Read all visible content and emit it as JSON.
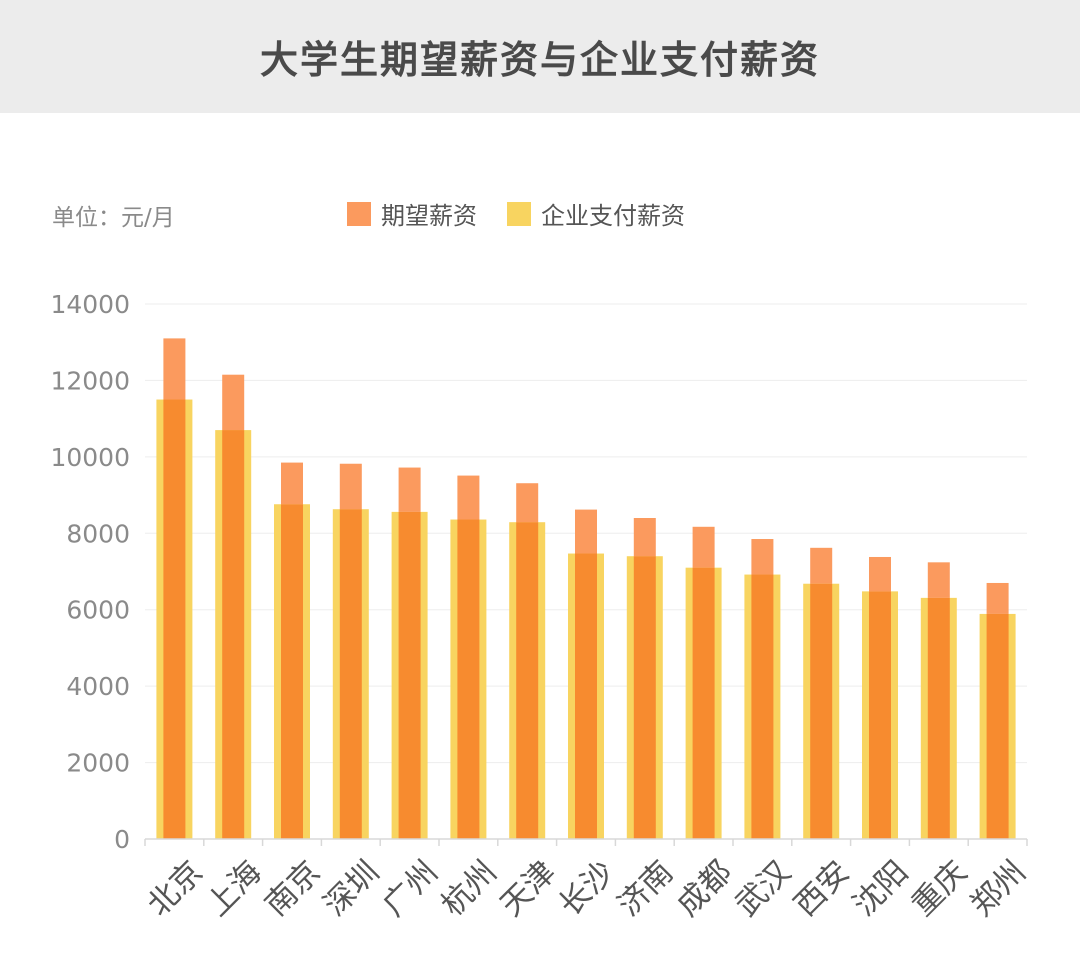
{
  "title": "大学生期望薪资与企业支付薪资",
  "unit_label": "单位：元/月",
  "colors": {
    "expected": "#fb9a5e",
    "paid": "#f8d460",
    "overlap": "#f78b2f",
    "title_bg": "#ececec",
    "grid": "#ededed",
    "axis_text": "#8a8a8a",
    "category_text": "#555555"
  },
  "chart_data": {
    "type": "bar",
    "title": "大学生期望薪资与企业支付薪资",
    "ylabel": "单位：元/月",
    "xlabel": "",
    "ylim": [
      0,
      14000
    ],
    "yticks": [
      "0",
      "2000",
      "4000",
      "6000",
      "8000",
      "10000",
      "12000",
      "14000"
    ],
    "grid": true,
    "legend_position": "top-center",
    "categories": [
      "北京",
      "上海",
      "南京",
      "深圳",
      "广州",
      "杭州",
      "天津",
      "长沙",
      "济南",
      "成都",
      "武汉",
      "西安",
      "沈阳",
      "重庆",
      "郑州"
    ],
    "series": [
      {
        "name": "期望薪资",
        "values": [
          13100,
          12150,
          9850,
          9820,
          9720,
          9510,
          9310,
          8620,
          8400,
          8170,
          7850,
          7620,
          7380,
          7240,
          6700
        ]
      },
      {
        "name": "企业支付薪资",
        "values": [
          11500,
          10700,
          8760,
          8630,
          8560,
          8360,
          8290,
          7470,
          7400,
          7100,
          6920,
          6680,
          6480,
          6310,
          5890
        ]
      }
    ]
  }
}
